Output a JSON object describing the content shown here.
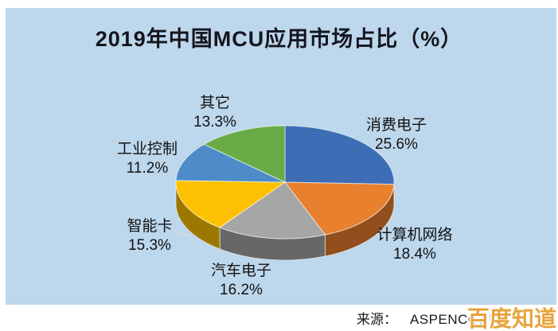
{
  "page": {
    "background": "#ffffff",
    "panel_background": "#BDD7EC"
  },
  "title": "2019年中国MCU应用市场占比（%）",
  "chart_data": {
    "type": "pie",
    "is_3d": true,
    "title": "2019年中国MCU应用市场占比（%）",
    "start_angle_deg": 0,
    "direction": "clockwise",
    "legend": "none",
    "unit": "%",
    "categories": [
      "消费电子",
      "计算机网络",
      "汽车电子",
      "智能卡",
      "工业控制",
      "其它"
    ],
    "values": [
      25.6,
      18.4,
      16.2,
      15.3,
      11.2,
      13.3
    ],
    "colors": [
      "#3D6EB5",
      "#E8802E",
      "#A6A6A6",
      "#FEC101",
      "#4E8BC8",
      "#69AC47"
    ],
    "label_format": "category + percent"
  },
  "source": {
    "label": "来源：",
    "text": "ASPENCORE,"
  },
  "watermark": {
    "text": "百度知道",
    "color": "#E7A33C"
  }
}
